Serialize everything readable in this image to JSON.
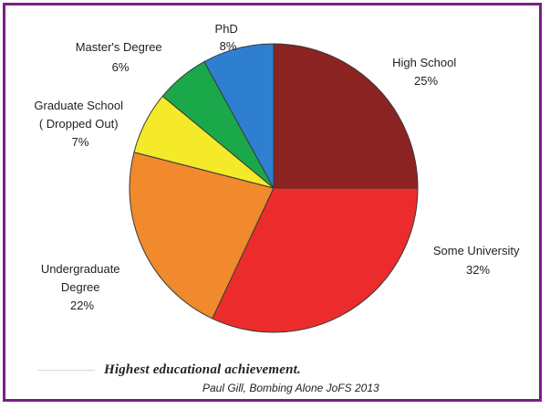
{
  "chart_data": {
    "type": "pie",
    "slices": [
      {
        "label": "High School",
        "value": 25,
        "pct_text": "25%",
        "color": "#8b2323"
      },
      {
        "label": "Some University",
        "value": 32,
        "pct_text": "32%",
        "color": "#ec2c2c"
      },
      {
        "label": "Undergraduate Degree",
        "value": 22,
        "pct_text": "22%",
        "color": "#f08a2c"
      },
      {
        "label": "Graduate School (Dropped Out)",
        "value": 7,
        "pct_text": "7%",
        "color": "#f4ea2a"
      },
      {
        "label": "Master's Degree",
        "value": 6,
        "pct_text": "6%",
        "color": "#1aa84a"
      },
      {
        "label": "PhD",
        "value": 8,
        "pct_text": "8%",
        "color": "#2f7fd0"
      }
    ],
    "start": "12 o'clock",
    "direction": "clockwise"
  },
  "caption": "Highest educational achievement.",
  "credit": "Paul Gill, Bombing Alone JoFS 2013",
  "frame_color": "#7a1f86"
}
